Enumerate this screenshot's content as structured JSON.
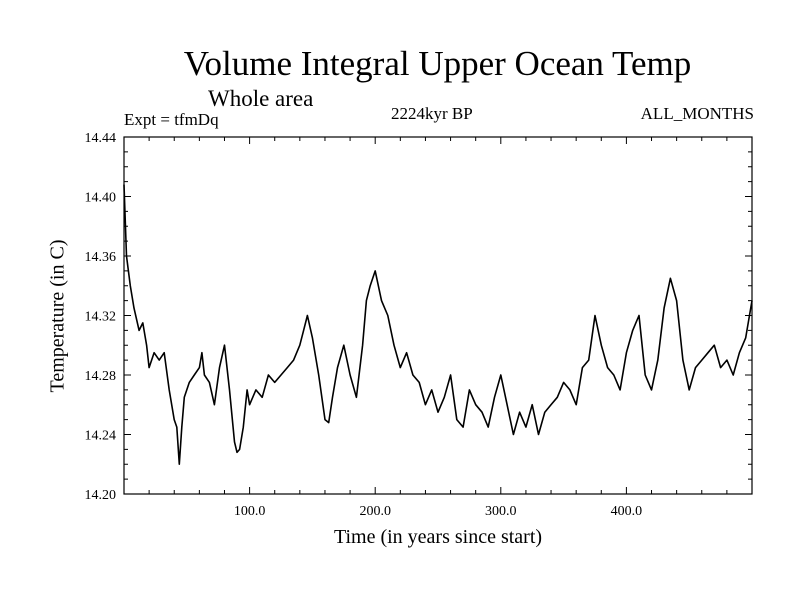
{
  "chart_data": {
    "type": "line",
    "title": "Volume Integral Upper Ocean Temp",
    "subtitle": "Whole area",
    "experiment": "Expt = tfmDq",
    "period": "2224kyr BP",
    "months": "ALL_MONTHS",
    "xlabel": "Time (in years since start)",
    "ylabel": "Temperature (in C)",
    "xlim": [
      0,
      500
    ],
    "ylim": [
      14.2,
      14.44
    ],
    "x_ticks": [
      100,
      200,
      300,
      400
    ],
    "x_tick_labels": [
      "100.0",
      "200.0",
      "300.0",
      "400.0"
    ],
    "y_ticks": [
      14.2,
      14.24,
      14.28,
      14.32,
      14.36,
      14.4,
      14.44
    ],
    "y_tick_labels": [
      "14.20",
      "14.24",
      "14.28",
      "14.32",
      "14.36",
      "14.40",
      "14.44"
    ],
    "grid": false,
    "series": [
      {
        "name": "Expt = tfmDq",
        "x": [
          0,
          2,
          5,
          8,
          12,
          15,
          18,
          20,
          24,
          28,
          32,
          36,
          40,
          42,
          44,
          46,
          48,
          52,
          56,
          60,
          62,
          64,
          68,
          72,
          76,
          80,
          84,
          88,
          90,
          92,
          95,
          98,
          100,
          105,
          110,
          115,
          120,
          125,
          130,
          135,
          140,
          143,
          146,
          150,
          155,
          160,
          163,
          166,
          170,
          175,
          180,
          185,
          190,
          193,
          196,
          200,
          205,
          210,
          215,
          220,
          225,
          230,
          235,
          240,
          245,
          250,
          255,
          260,
          265,
          270,
          275,
          280,
          285,
          290,
          295,
          300,
          305,
          310,
          315,
          320,
          325,
          330,
          335,
          340,
          345,
          350,
          355,
          360,
          365,
          370,
          375,
          380,
          385,
          390,
          395,
          400,
          405,
          410,
          415,
          420,
          425,
          430,
          435,
          440,
          445,
          450,
          455,
          460,
          465,
          470,
          475,
          480,
          485,
          490,
          495,
          500
        ],
        "values": [
          14.408,
          14.36,
          14.34,
          14.325,
          14.31,
          14.315,
          14.3,
          14.285,
          14.295,
          14.29,
          14.295,
          14.27,
          14.25,
          14.245,
          14.22,
          14.245,
          14.265,
          14.275,
          14.28,
          14.285,
          14.295,
          14.28,
          14.275,
          14.26,
          14.285,
          14.3,
          14.27,
          14.235,
          14.228,
          14.23,
          14.245,
          14.27,
          14.26,
          14.27,
          14.265,
          14.28,
          14.275,
          14.28,
          14.285,
          14.29,
          14.3,
          14.31,
          14.32,
          14.305,
          14.28,
          14.25,
          14.248,
          14.265,
          14.285,
          14.3,
          14.28,
          14.265,
          14.3,
          14.33,
          14.34,
          14.35,
          14.33,
          14.32,
          14.3,
          14.285,
          14.295,
          14.28,
          14.275,
          14.26,
          14.27,
          14.255,
          14.265,
          14.28,
          14.25,
          14.245,
          14.27,
          14.26,
          14.255,
          14.245,
          14.265,
          14.28,
          14.26,
          14.24,
          14.255,
          14.245,
          14.26,
          14.24,
          14.255,
          14.26,
          14.265,
          14.275,
          14.27,
          14.26,
          14.285,
          14.29,
          14.32,
          14.3,
          14.285,
          14.28,
          14.27,
          14.295,
          14.31,
          14.32,
          14.28,
          14.27,
          14.29,
          14.325,
          14.345,
          14.33,
          14.29,
          14.27,
          14.285,
          14.29,
          14.295,
          14.3,
          14.285,
          14.29,
          14.28,
          14.295,
          14.305,
          14.33
        ]
      }
    ]
  }
}
